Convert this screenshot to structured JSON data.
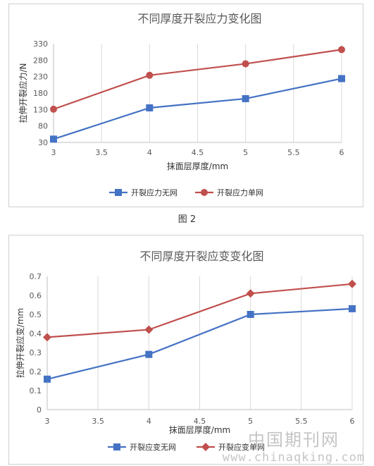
{
  "figure_caption": "图 2",
  "watermark": {
    "name": "中国期刊网",
    "url": "www.chinaqking.com"
  },
  "chart_data": [
    {
      "type": "line",
      "title": "不同厚度开裂应力变化图",
      "xlabel": "抹面层厚度/mm",
      "ylabel": "拉伸开裂应力/N",
      "x": [
        3,
        4,
        5,
        6
      ],
      "xlim": [
        3,
        6
      ],
      "xticks": [
        "3",
        "3.5",
        "4",
        "4.5",
        "5",
        "5.5",
        "6"
      ],
      "ylim": [
        30,
        330
      ],
      "yticks": [
        "30",
        "80",
        "130",
        "180",
        "230",
        "280",
        "330"
      ],
      "grid": "vertical",
      "legend": "bottom",
      "series": [
        {
          "name": "开裂应力无网",
          "values": [
            40,
            135,
            163,
            224
          ],
          "color": "#4472c4",
          "marker": "square"
        },
        {
          "name": "开裂应力单网",
          "values": [
            131,
            234,
            269,
            312
          ],
          "color": "#c0504d",
          "marker": "circle"
        }
      ]
    },
    {
      "type": "line",
      "title": "不同厚度开裂应变变化图",
      "xlabel": "抹面层厚度/mm",
      "ylabel": "拉伸开裂应变/mm",
      "x": [
        3,
        4,
        5,
        6
      ],
      "xlim": [
        3,
        6
      ],
      "xticks": [
        "3",
        "3.5",
        "4",
        "4.5",
        "5",
        "5.5",
        "6"
      ],
      "ylim": [
        0,
        0.7
      ],
      "yticks": [
        "0",
        "0.1",
        "0.2",
        "0.3",
        "0.4",
        "0.5",
        "0.6",
        "0.7"
      ],
      "grid": "vertical",
      "legend": "bottom",
      "series": [
        {
          "name": "开裂应变无网",
          "values": [
            0.16,
            0.29,
            0.5,
            0.53
          ],
          "color": "#4472c4",
          "marker": "square"
        },
        {
          "name": "开裂应变单网",
          "values": [
            0.38,
            0.42,
            0.61,
            0.66
          ],
          "color": "#c0504d",
          "marker": "diamond"
        }
      ]
    }
  ]
}
